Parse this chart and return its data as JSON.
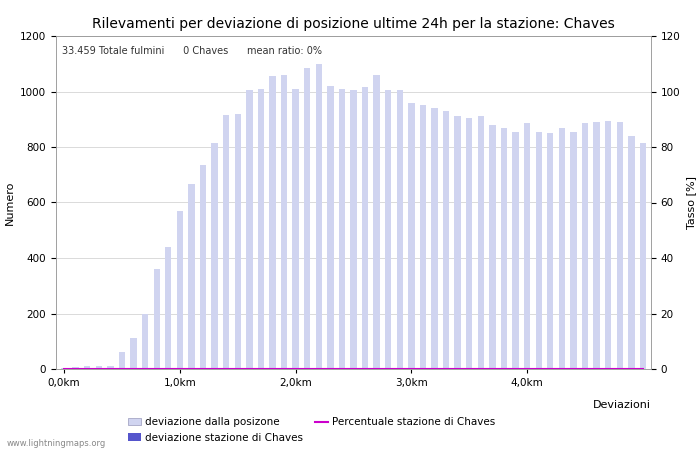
{
  "title": "Rilevamenti per deviazione di posizione ultime 24h per la stazione: Chaves",
  "subtitle": "33.459 Totale fulmini      0 Chaves      mean ratio: 0%",
  "xlabel": "Deviazioni",
  "ylabel_left": "Numero",
  "ylabel_right": "Tasso [%]",
  "watermark": "www.lightningmaps.org",
  "xtick_labels": [
    "0,0km",
    "1,0km",
    "2,0km",
    "3,0km",
    "4,0km"
  ],
  "xtick_positions": [
    0,
    10,
    20,
    30,
    40
  ],
  "ylim_left": [
    0,
    1200
  ],
  "ylim_right": [
    0,
    120
  ],
  "yticks_left": [
    0,
    200,
    400,
    600,
    800,
    1000,
    1200
  ],
  "yticks_right": [
    0,
    20,
    40,
    60,
    80,
    100,
    120
  ],
  "bar_color": "#d0d4f0",
  "bar_color_station": "#5555cc",
  "line_color": "#cc00cc",
  "bar_values": [
    5,
    8,
    10,
    10,
    12,
    60,
    110,
    200,
    360,
    440,
    570,
    665,
    735,
    815,
    915,
    920,
    1005,
    1010,
    1055,
    1060,
    1010,
    1085,
    1100,
    1020,
    1010,
    1005,
    1015,
    1060,
    1005,
    1005,
    960,
    950,
    940,
    930,
    910,
    905,
    910,
    880,
    870,
    855,
    885,
    855,
    850,
    870,
    855,
    885,
    890,
    895,
    890,
    840,
    815
  ],
  "station_bar_values": [
    0,
    0,
    0,
    0,
    0,
    0,
    0,
    0,
    0,
    0,
    0,
    0,
    0,
    0,
    0,
    0,
    0,
    0,
    0,
    0,
    0,
    0,
    0,
    0,
    0,
    0,
    0,
    0,
    0,
    0,
    0,
    0,
    0,
    0,
    0,
    0,
    0,
    0,
    0,
    0,
    0,
    0,
    0,
    0,
    0,
    0,
    0,
    0,
    0,
    0,
    0
  ],
  "line_values": [
    0,
    0,
    0,
    0,
    0,
    0,
    0,
    0,
    0,
    0,
    0,
    0,
    0,
    0,
    0,
    0,
    0,
    0,
    0,
    0,
    0,
    0,
    0,
    0,
    0,
    0,
    0,
    0,
    0,
    0,
    0,
    0,
    0,
    0,
    0,
    0,
    0,
    0,
    0,
    0,
    0,
    0,
    0,
    0,
    0,
    0,
    0,
    0,
    0,
    0,
    0
  ],
  "legend_label_bar": "deviazione dalla posizone",
  "legend_label_station": "deviazione stazione di Chaves",
  "legend_label_line": "Percentuale stazione di Chaves",
  "bg_color": "#ffffff",
  "grid_color": "#cccccc",
  "title_fontsize": 10,
  "axis_fontsize": 8,
  "tick_fontsize": 7.5
}
